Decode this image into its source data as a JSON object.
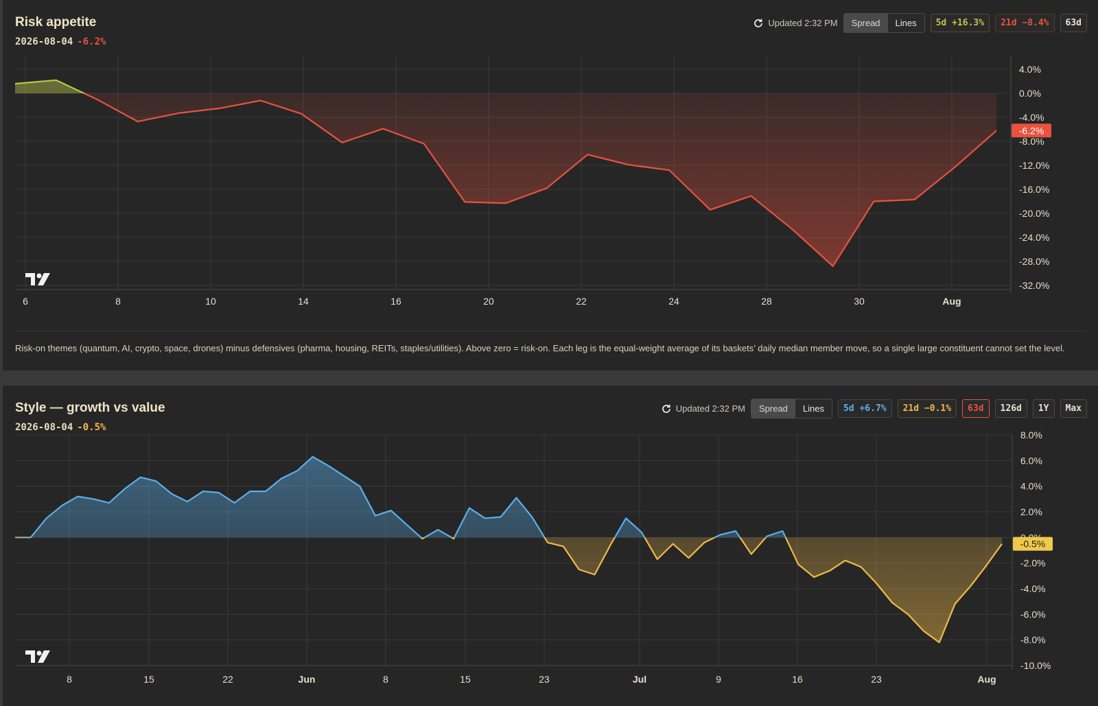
{
  "panels": [
    {
      "title": "Risk appetite",
      "date": "2026-08-04",
      "change": "-6.2%",
      "change_color": "#e8523f",
      "updated": "Updated 2:32 PM",
      "toggle": [
        "Spread",
        "Lines"
      ],
      "toggle_active": "Spread",
      "chips": [
        {
          "label": "5d +16.3%",
          "color": "#b9c64a",
          "border": "#4f5230"
        },
        {
          "label": "21d −8.4%",
          "color": "#e8523f",
          "border": "#5a3430"
        },
        {
          "label": "63d",
          "color": "#e8e2cf",
          "border": "#4a4a4a",
          "active": true
        }
      ],
      "note": "Risk-on themes (quantum, AI, crypto, space, drones) minus defensives (pharma, housing, REITs, staples/utilities). Above zero = risk-on. Each leg is the equal-weight average of its baskets’ daily median member move, so a single large constituent cannot set the level.",
      "logo": "tradingview-logo-icon"
    },
    {
      "title": "Style — growth vs value",
      "date": "2026-08-04",
      "change": "-0.5%",
      "change_color": "#f0b94a",
      "updated": "Updated 2:32 PM",
      "toggle": [
        "Spread",
        "Lines"
      ],
      "toggle_active": "Spread",
      "chips": [
        {
          "label": "5d +6.7%",
          "color": "#5bb0ea",
          "border": "#2f4d66"
        },
        {
          "label": "21d −0.1%",
          "color": "#f0b94a",
          "border": "#5a4a2a"
        },
        {
          "label": "63d",
          "color": "#e8523f",
          "border": "#e8523f",
          "active": true
        },
        {
          "label": "126d",
          "color": "#e8e2cf",
          "border": "#4a4a4a"
        },
        {
          "label": "1Y",
          "color": "#e8e2cf",
          "border": "#4a4a4a"
        },
        {
          "label": "Max",
          "color": "#e8e2cf",
          "border": "#4a4a4a"
        }
      ],
      "note": "",
      "logo": "tradingview-logo-icon"
    }
  ],
  "chart_data": [
    {
      "type": "area",
      "title": "Risk appetite",
      "y_unit": "%",
      "ylim": [
        -32,
        4
      ],
      "yticks": [
        "4.0%",
        "0.0%",
        "-4.0%",
        "-8.0%",
        "-12.0%",
        "-16.0%",
        "-20.0%",
        "-24.0%",
        "-28.0%",
        "-32.0%"
      ],
      "xticks": [
        "6",
        "8",
        "10",
        "14",
        "16",
        "20",
        "22",
        "24",
        "28",
        "30",
        "Aug"
      ],
      "last_value_label": "-6.2%",
      "positive_color": "#b9c64a",
      "negative_color": "#e8523f",
      "values": [
        1.6,
        2.2,
        -1.0,
        -4.7,
        -3.3,
        -2.5,
        -1.2,
        -3.4,
        -8.2,
        -5.9,
        -8.4,
        -18.1,
        -18.3,
        -15.8,
        -10.2,
        -11.9,
        -12.8,
        -19.4,
        -17.1,
        -22.6,
        -28.8,
        -18.0,
        -17.7,
        -12.2,
        -6.2
      ]
    },
    {
      "type": "area",
      "title": "Style — growth vs value",
      "y_unit": "%",
      "ylim": [
        -10,
        8
      ],
      "yticks": [
        "8.0%",
        "6.0%",
        "4.0%",
        "2.0%",
        "0.0%",
        "-2.0%",
        "-4.0%",
        "-6.0%",
        "-8.0%",
        "-10.0%"
      ],
      "xticks": [
        "8",
        "15",
        "22",
        "Jun",
        "8",
        "15",
        "23",
        "Jul",
        "9",
        "16",
        "23",
        "Aug"
      ],
      "xticks_bold": [
        "Jun",
        "Jul",
        "Aug"
      ],
      "last_value_label": "-0.5%",
      "positive_color": "#5bb0ea",
      "negative_color": "#f0b94a",
      "values": [
        0.0,
        0.0,
        1.5,
        2.5,
        3.2,
        3.0,
        2.7,
        3.8,
        4.7,
        4.4,
        3.4,
        2.8,
        3.6,
        3.5,
        2.7,
        3.6,
        3.6,
        4.6,
        5.2,
        6.3,
        5.6,
        4.8,
        4.0,
        1.7,
        2.1,
        1.0,
        -0.1,
        0.6,
        -0.1,
        2.3,
        1.5,
        1.6,
        3.1,
        1.6,
        -0.4,
        -0.7,
        -2.5,
        -2.9,
        -0.6,
        1.5,
        0.4,
        -1.7,
        -0.5,
        -1.6,
        -0.4,
        0.2,
        0.5,
        -1.3,
        0.1,
        0.5,
        -2.1,
        -3.1,
        -2.6,
        -1.8,
        -2.3,
        -3.6,
        -5.1,
        -6.0,
        -7.3,
        -8.2,
        -5.2,
        -3.8,
        -2.2,
        -0.5
      ]
    }
  ]
}
